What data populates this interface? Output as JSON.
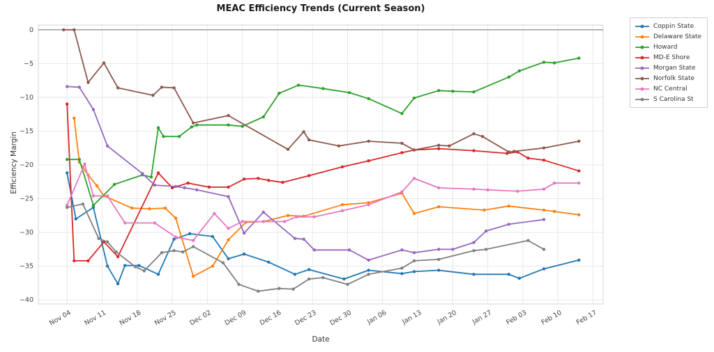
{
  "chart_data": {
    "type": "line",
    "title": "MEAC Efficiency Trends (Current Season)",
    "xlabel": "Date",
    "ylabel": "Efficiency Margin",
    "x_unit": "weeks_since_Nov_04",
    "x_tick_labels": [
      "Nov 04",
      "Nov 11",
      "Nov 18",
      "Nov 25",
      "Dec 02",
      "Dec 09",
      "Dec 16",
      "Dec 23",
      "Dec 30",
      "Jan 06",
      "Jan 13",
      "Jan 20",
      "Jan 27",
      "Feb 03",
      "Feb 10",
      "Feb 17"
    ],
    "y_ticks": [
      0,
      -5,
      -10,
      -15,
      -20,
      -25,
      -30,
      -35,
      -40
    ],
    "xlim_weeks": [
      -0.82,
      15.29
    ],
    "ylim": [
      -40.6,
      0.7
    ],
    "grid": true,
    "legend_position": "outside-upper-right",
    "zero_line": {
      "value": 0,
      "color": "#808080"
    },
    "grid_color": "#e8e8e8",
    "spine_color": "#d4d4d4",
    "tick_color": "#444444",
    "series": [
      {
        "name": "Coppin State",
        "color": "#1f77b4",
        "points": [
          [
            0,
            -21.2
          ],
          [
            0.25,
            -28
          ],
          [
            0.75,
            -26.3
          ],
          [
            1.15,
            -35
          ],
          [
            1.45,
            -37.6
          ],
          [
            1.65,
            -34.9
          ],
          [
            2.05,
            -34.9
          ],
          [
            2.6,
            -36.2
          ],
          [
            3.05,
            -31
          ],
          [
            3.5,
            -30.2
          ],
          [
            4.15,
            -30.6
          ],
          [
            4.6,
            -33.9
          ],
          [
            5.05,
            -33.2
          ],
          [
            5.75,
            -34.4
          ],
          [
            6.5,
            -36.2
          ],
          [
            6.9,
            -35.5
          ],
          [
            7.9,
            -36.9
          ],
          [
            8.6,
            -35.6
          ],
          [
            9.55,
            -36.1
          ],
          [
            9.9,
            -35.8
          ],
          [
            10.6,
            -35.6
          ],
          [
            11.6,
            -36.2
          ],
          [
            12.6,
            -36.2
          ],
          [
            12.9,
            -36.8
          ],
          [
            13.6,
            -35.4
          ],
          [
            14.6,
            -34.1
          ]
        ]
      },
      {
        "name": "Delaware State",
        "color": "#ff7f0e",
        "points": [
          [
            0.2,
            -13.1
          ],
          [
            0.35,
            -19.6
          ],
          [
            0.6,
            -21.5
          ],
          [
            0.85,
            -23.1
          ],
          [
            1.05,
            -24.6
          ],
          [
            1.85,
            -26.4
          ],
          [
            2.35,
            -26.5
          ],
          [
            2.8,
            -26.4
          ],
          [
            3.1,
            -27.9
          ],
          [
            3.6,
            -36.5
          ],
          [
            4.15,
            -35
          ],
          [
            4.6,
            -31.1
          ],
          [
            5.1,
            -28.5
          ],
          [
            5.6,
            -28.4
          ],
          [
            6.3,
            -27.5
          ],
          [
            6.75,
            -27.6
          ],
          [
            7.85,
            -25.9
          ],
          [
            8.6,
            -25.6
          ],
          [
            9.55,
            -24.2
          ],
          [
            9.9,
            -27.2
          ],
          [
            10.6,
            -26.2
          ],
          [
            11.9,
            -26.7
          ],
          [
            12.6,
            -26.1
          ],
          [
            13.6,
            -26.7
          ],
          [
            13.9,
            -26.9
          ],
          [
            14.6,
            -27.4
          ]
        ]
      },
      {
        "name": "Howard",
        "color": "#2ca02c",
        "points": [
          [
            0,
            -19.2
          ],
          [
            0.35,
            -19.2
          ],
          [
            0.75,
            -26
          ],
          [
            1.35,
            -22.9
          ],
          [
            2.15,
            -21.5
          ],
          [
            2.4,
            -21.8
          ],
          [
            2.6,
            -14.5
          ],
          [
            2.75,
            -15.8
          ],
          [
            3.2,
            -15.8
          ],
          [
            3.55,
            -14.4
          ],
          [
            3.7,
            -14.1
          ],
          [
            4.6,
            -14.1
          ],
          [
            5,
            -14.3
          ],
          [
            5.6,
            -12.9
          ],
          [
            6.05,
            -9.4
          ],
          [
            6.6,
            -8.2
          ],
          [
            7.3,
            -8.7
          ],
          [
            8.05,
            -9.3
          ],
          [
            8.6,
            -10.2
          ],
          [
            9.55,
            -12.4
          ],
          [
            9.9,
            -10.1
          ],
          [
            10.6,
            -9
          ],
          [
            11,
            -9.1
          ],
          [
            11.6,
            -9.2
          ],
          [
            12.6,
            -7
          ],
          [
            12.9,
            -6.1
          ],
          [
            13.6,
            -4.8
          ],
          [
            13.9,
            -4.9
          ],
          [
            14.6,
            -4.2
          ]
        ]
      },
      {
        "name": "MD-E Shore",
        "color": "#d62728",
        "points": [
          [
            0,
            -11
          ],
          [
            0.2,
            -34.2
          ],
          [
            0.6,
            -34.2
          ],
          [
            1.05,
            -31.4
          ],
          [
            1.45,
            -33.6
          ],
          [
            2.6,
            -21.2
          ],
          [
            3,
            -23.4
          ],
          [
            3.45,
            -22.7
          ],
          [
            4.05,
            -23.3
          ],
          [
            4.6,
            -23.3
          ],
          [
            5.05,
            -22.1
          ],
          [
            5.45,
            -22
          ],
          [
            5.75,
            -22.3
          ],
          [
            6.15,
            -22.6
          ],
          [
            6.9,
            -21.6
          ],
          [
            7.85,
            -20.3
          ],
          [
            8.6,
            -19.4
          ],
          [
            9.55,
            -18.2
          ],
          [
            9.9,
            -17.8
          ],
          [
            10.6,
            -17.6
          ],
          [
            11.6,
            -17.9
          ],
          [
            12.55,
            -18.3
          ],
          [
            12.85,
            -18.1
          ],
          [
            13.15,
            -19
          ],
          [
            13.6,
            -19.3
          ],
          [
            14.6,
            -20.9
          ]
        ]
      },
      {
        "name": "Morgan State",
        "color": "#9467bd",
        "points": [
          [
            0,
            -8.4
          ],
          [
            0.35,
            -8.5
          ],
          [
            0.75,
            -11.8
          ],
          [
            1.15,
            -17.2
          ],
          [
            2.15,
            -21.3
          ],
          [
            2.5,
            -23
          ],
          [
            3.1,
            -23.2
          ],
          [
            3.35,
            -23.4
          ],
          [
            3.7,
            -23.7
          ],
          [
            4.6,
            -24.7
          ],
          [
            5.05,
            -30.1
          ],
          [
            5.6,
            -27
          ],
          [
            6.5,
            -30.9
          ],
          [
            6.75,
            -31
          ],
          [
            7.05,
            -32.6
          ],
          [
            8.05,
            -32.6
          ],
          [
            8.6,
            -34.1
          ],
          [
            9.55,
            -32.6
          ],
          [
            9.9,
            -33
          ],
          [
            10.6,
            -32.5
          ],
          [
            11,
            -32.5
          ],
          [
            11.6,
            -31.5
          ],
          [
            11.95,
            -29.8
          ],
          [
            12.6,
            -28.8
          ],
          [
            13.6,
            -28.1
          ]
        ]
      },
      {
        "name": "Norfolk State",
        "color": "#8c564b",
        "points": [
          [
            -0.1,
            0
          ],
          [
            0.2,
            0
          ],
          [
            0.6,
            -7.8
          ],
          [
            1.05,
            -4.9
          ],
          [
            1.45,
            -8.6
          ],
          [
            2.45,
            -9.7
          ],
          [
            2.7,
            -8.5
          ],
          [
            3.05,
            -8.6
          ],
          [
            3.6,
            -13.8
          ],
          [
            4.6,
            -12.7
          ],
          [
            6.3,
            -17.7
          ],
          [
            6.75,
            -15.1
          ],
          [
            6.9,
            -16.3
          ],
          [
            7.75,
            -17.2
          ],
          [
            8.6,
            -16.5
          ],
          [
            9.55,
            -16.8
          ],
          [
            9.9,
            -17.8
          ],
          [
            10.6,
            -17.1
          ],
          [
            10.9,
            -17.2
          ],
          [
            11.6,
            -15.4
          ],
          [
            11.85,
            -15.8
          ],
          [
            12.6,
            -18.1
          ],
          [
            12.75,
            -18
          ],
          [
            13.6,
            -17.5
          ],
          [
            14.6,
            -16.5
          ]
        ]
      },
      {
        "name": "NC Central",
        "color": "#e377c2",
        "points": [
          [
            0,
            -26
          ],
          [
            0.5,
            -19.9
          ],
          [
            0.75,
            -24.6
          ],
          [
            1.15,
            -24.6
          ],
          [
            1.65,
            -28.6
          ],
          [
            2.5,
            -28.6
          ],
          [
            3.1,
            -30.7
          ],
          [
            3.6,
            -31.2
          ],
          [
            4.2,
            -27.2
          ],
          [
            4.6,
            -29.4
          ],
          [
            5,
            -28.4
          ],
          [
            5.6,
            -28.4
          ],
          [
            6.2,
            -28.4
          ],
          [
            6.55,
            -27.7
          ],
          [
            7.05,
            -27.7
          ],
          [
            7.85,
            -26.8
          ],
          [
            8.6,
            -25.9
          ],
          [
            9.55,
            -24
          ],
          [
            9.9,
            -22
          ],
          [
            10.6,
            -23.4
          ],
          [
            11.6,
            -23.6
          ],
          [
            12,
            -23.7
          ],
          [
            12.85,
            -23.9
          ],
          [
            13.6,
            -23.6
          ],
          [
            13.9,
            -22.7
          ],
          [
            14.6,
            -22.7
          ]
        ]
      },
      {
        "name": "S Carolina St",
        "color": "#7f7f7f",
        "points": [
          [
            0,
            -26.3
          ],
          [
            0.45,
            -25.8
          ],
          [
            0.9,
            -30.9
          ],
          [
            1.15,
            -31.4
          ],
          [
            1.4,
            -32.9
          ],
          [
            1.95,
            -35.1
          ],
          [
            2.2,
            -35.7
          ],
          [
            2.7,
            -33
          ],
          [
            3.05,
            -32.7
          ],
          [
            3.3,
            -32.9
          ],
          [
            3.6,
            -32.1
          ],
          [
            4.45,
            -34.5
          ],
          [
            4.9,
            -37.7
          ],
          [
            5.45,
            -38.7
          ],
          [
            6.05,
            -38.3
          ],
          [
            6.45,
            -38.4
          ],
          [
            6.9,
            -36.9
          ],
          [
            7.3,
            -36.7
          ],
          [
            8,
            -37.7
          ],
          [
            8.6,
            -36.2
          ],
          [
            9.55,
            -35.3
          ],
          [
            9.9,
            -34.2
          ],
          [
            10.6,
            -34
          ],
          [
            11.6,
            -32.7
          ],
          [
            11.95,
            -32.5
          ],
          [
            13.15,
            -31.2
          ],
          [
            13.6,
            -32.5
          ]
        ]
      }
    ]
  }
}
